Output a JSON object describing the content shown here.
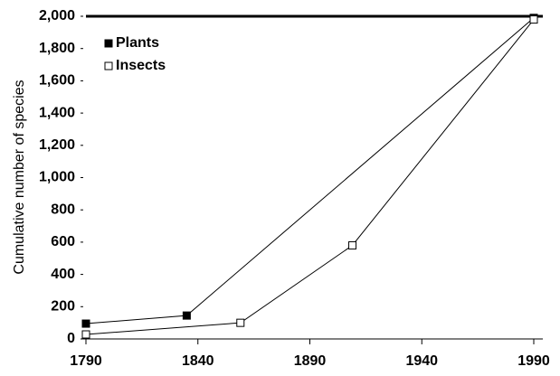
{
  "chart_data": {
    "type": "line",
    "y_label": "Cumulative number of species",
    "xlim": [
      1790,
      1990
    ],
    "xticks": [
      1790,
      1840,
      1890,
      1940,
      1990
    ],
    "ylim": [
      0,
      2000
    ],
    "yticks": [
      0,
      200,
      400,
      600,
      800,
      {
        "value": 1000,
        "label": "1,000"
      },
      {
        "value": 1200,
        "label": "1,200"
      },
      {
        "value": 1400,
        "label": "1,400"
      },
      {
        "value": 1600,
        "label": "1,600"
      },
      {
        "value": 1800,
        "label": "1,800"
      },
      {
        "value": 2000,
        "label": "2,000"
      }
    ],
    "grid": false,
    "legend": "upper left",
    "series": [
      {
        "name": "Plants",
        "color": "#000000",
        "marker": "filled",
        "x": [
          1790,
          1835,
          1990
        ],
        "values": [
          95,
          145,
          1990
        ]
      },
      {
        "name": "Insects",
        "color": "#000000",
        "marker": "hollow",
        "x": [
          1790,
          1859,
          1909,
          1990
        ],
        "values": [
          28,
          100,
          580,
          1980
        ]
      }
    ]
  }
}
